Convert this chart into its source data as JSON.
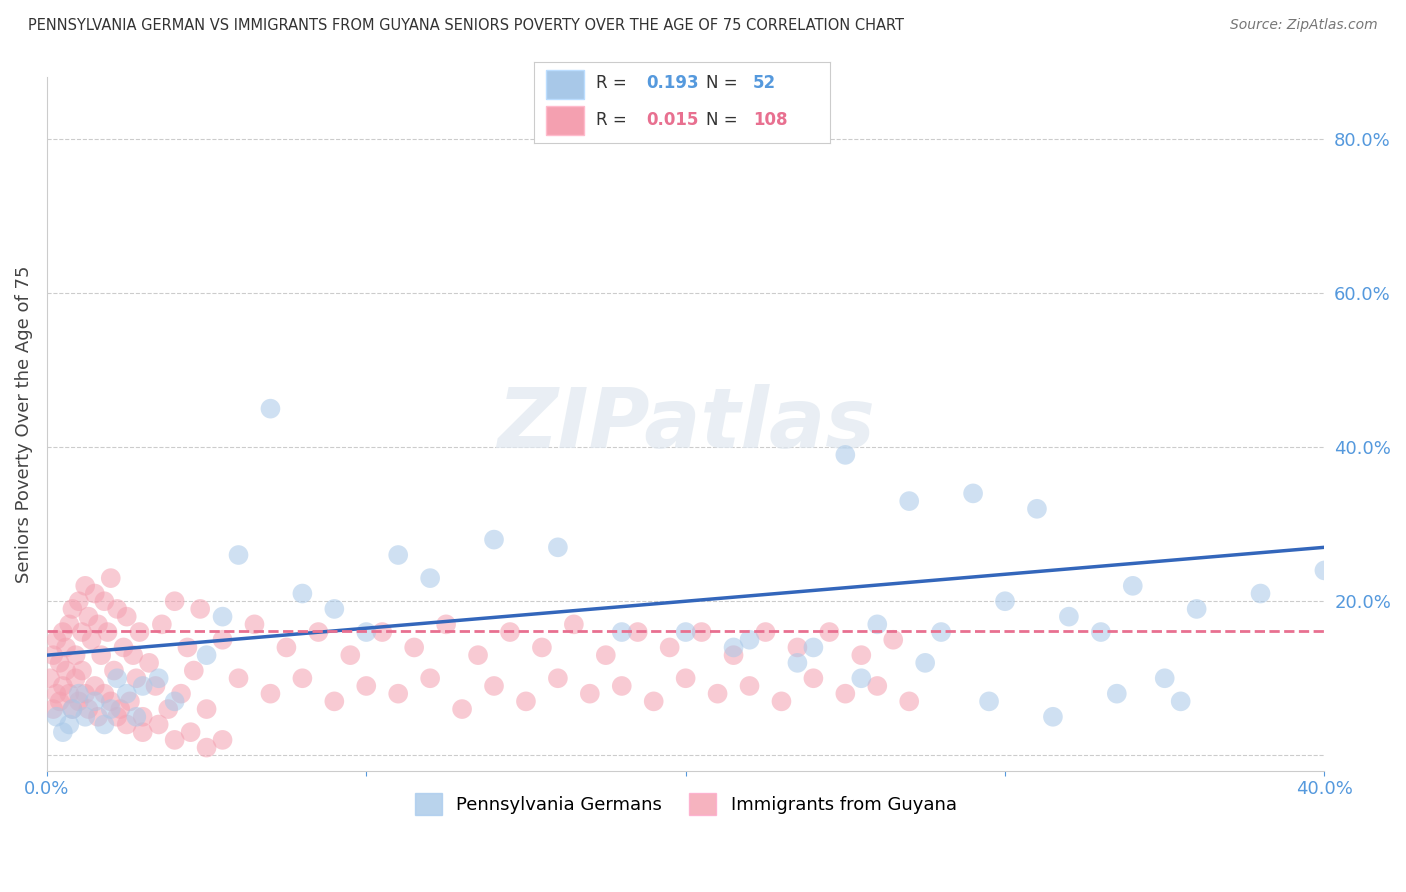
{
  "title": "PENNSYLVANIA GERMAN VS IMMIGRANTS FROM GUYANA SENIORS POVERTY OVER THE AGE OF 75 CORRELATION CHART",
  "source": "Source: ZipAtlas.com",
  "ylabel": "Seniors Poverty Over the Age of 75",
  "xlim": [
    0.0,
    0.4
  ],
  "ylim": [
    -0.02,
    0.88
  ],
  "blue_R": 0.193,
  "blue_N": 52,
  "pink_R": 0.015,
  "pink_N": 108,
  "blue_color": "#A8C8E8",
  "pink_color": "#F4A0B0",
  "blue_line_color": "#3366BB",
  "pink_line_color": "#E87090",
  "grid_color": "#CCCCCC",
  "background_color": "#FFFFFF",
  "title_color": "#333333",
  "axis_label_color": "#5599DD",
  "legend_label_blue": "Pennsylvania Germans",
  "legend_label_pink": "Immigrants from Guyana",
  "blue_x": [
    0.003,
    0.005,
    0.007,
    0.008,
    0.01,
    0.012,
    0.015,
    0.018,
    0.02,
    0.022,
    0.025,
    0.028,
    0.03,
    0.035,
    0.04,
    0.05,
    0.055,
    0.06,
    0.07,
    0.08,
    0.09,
    0.1,
    0.11,
    0.12,
    0.14,
    0.16,
    0.18,
    0.2,
    0.22,
    0.24,
    0.26,
    0.28,
    0.3,
    0.32,
    0.34,
    0.36,
    0.38,
    0.4,
    0.25,
    0.27,
    0.29,
    0.31,
    0.33,
    0.35,
    0.215,
    0.235,
    0.255,
    0.275,
    0.295,
    0.315,
    0.335,
    0.355
  ],
  "blue_y": [
    0.05,
    0.03,
    0.04,
    0.06,
    0.08,
    0.05,
    0.07,
    0.04,
    0.06,
    0.1,
    0.08,
    0.05,
    0.09,
    0.1,
    0.07,
    0.13,
    0.18,
    0.26,
    0.45,
    0.21,
    0.19,
    0.16,
    0.26,
    0.23,
    0.28,
    0.27,
    0.16,
    0.16,
    0.15,
    0.14,
    0.17,
    0.16,
    0.2,
    0.18,
    0.22,
    0.19,
    0.21,
    0.24,
    0.39,
    0.33,
    0.34,
    0.32,
    0.16,
    0.1,
    0.14,
    0.12,
    0.1,
    0.12,
    0.07,
    0.05,
    0.08,
    0.07
  ],
  "pink_x": [
    0.001,
    0.002,
    0.002,
    0.003,
    0.003,
    0.004,
    0.004,
    0.005,
    0.005,
    0.006,
    0.006,
    0.007,
    0.007,
    0.008,
    0.008,
    0.009,
    0.009,
    0.01,
    0.01,
    0.011,
    0.011,
    0.012,
    0.012,
    0.013,
    0.013,
    0.014,
    0.015,
    0.015,
    0.016,
    0.016,
    0.017,
    0.018,
    0.018,
    0.019,
    0.02,
    0.02,
    0.021,
    0.022,
    0.023,
    0.024,
    0.025,
    0.026,
    0.027,
    0.028,
    0.029,
    0.03,
    0.032,
    0.034,
    0.036,
    0.038,
    0.04,
    0.042,
    0.044,
    0.046,
    0.048,
    0.05,
    0.055,
    0.06,
    0.065,
    0.07,
    0.075,
    0.08,
    0.085,
    0.09,
    0.095,
    0.1,
    0.105,
    0.11,
    0.115,
    0.12,
    0.125,
    0.13,
    0.135,
    0.14,
    0.145,
    0.15,
    0.155,
    0.16,
    0.165,
    0.17,
    0.175,
    0.18,
    0.185,
    0.19,
    0.195,
    0.2,
    0.205,
    0.21,
    0.215,
    0.22,
    0.225,
    0.23,
    0.235,
    0.24,
    0.245,
    0.25,
    0.255,
    0.26,
    0.265,
    0.27,
    0.022,
    0.025,
    0.03,
    0.035,
    0.04,
    0.045,
    0.05,
    0.055
  ],
  "pink_y": [
    0.1,
    0.13,
    0.06,
    0.15,
    0.08,
    0.12,
    0.07,
    0.16,
    0.09,
    0.14,
    0.11,
    0.17,
    0.08,
    0.19,
    0.06,
    0.13,
    0.1,
    0.2,
    0.07,
    0.16,
    0.11,
    0.22,
    0.08,
    0.18,
    0.06,
    0.15,
    0.21,
    0.09,
    0.17,
    0.05,
    0.13,
    0.2,
    0.08,
    0.16,
    0.23,
    0.07,
    0.11,
    0.19,
    0.06,
    0.14,
    0.18,
    0.07,
    0.13,
    0.1,
    0.16,
    0.05,
    0.12,
    0.09,
    0.17,
    0.06,
    0.2,
    0.08,
    0.14,
    0.11,
    0.19,
    0.06,
    0.15,
    0.1,
    0.17,
    0.08,
    0.14,
    0.1,
    0.16,
    0.07,
    0.13,
    0.09,
    0.16,
    0.08,
    0.14,
    0.1,
    0.17,
    0.06,
    0.13,
    0.09,
    0.16,
    0.07,
    0.14,
    0.1,
    0.17,
    0.08,
    0.13,
    0.09,
    0.16,
    0.07,
    0.14,
    0.1,
    0.16,
    0.08,
    0.13,
    0.09,
    0.16,
    0.07,
    0.14,
    0.1,
    0.16,
    0.08,
    0.13,
    0.09,
    0.15,
    0.07,
    0.05,
    0.04,
    0.03,
    0.04,
    0.02,
    0.03,
    0.01,
    0.02
  ],
  "blue_trend_x0": 0.0,
  "blue_trend_y0": 0.13,
  "blue_trend_x1": 0.4,
  "blue_trend_y1": 0.27,
  "pink_trend_x0": 0.0,
  "pink_trend_y0": 0.162,
  "pink_trend_x1": 0.4,
  "pink_trend_y1": 0.162
}
